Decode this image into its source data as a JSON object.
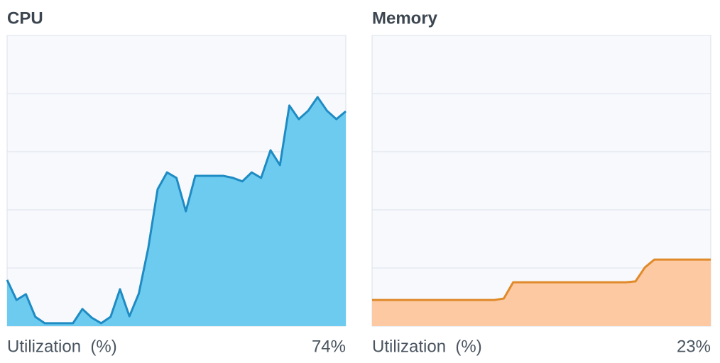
{
  "chart_data": [
    {
      "type": "area",
      "title": "CPU",
      "footer_label": "Utilization  (%)",
      "current_value": 74,
      "current_value_label": "74%",
      "line_color": "#1e8bc3",
      "fill_color": "#6ecbf0",
      "values": [
        15.9,
        9.0,
        11.0,
        3.2,
        1.0,
        1.0,
        1.0,
        1.0,
        5.9,
        2.9,
        1.0,
        3.2,
        12.7,
        3.4,
        11.2,
        26.8,
        47.1,
        52.9,
        51.0,
        39.5,
        51.7,
        51.7,
        51.7,
        51.7,
        51.0,
        49.8,
        52.9,
        51.0,
        60.5,
        55.4,
        75.9,
        71.2,
        74.1,
        78.8,
        74.1,
        71.2,
        73.9
      ],
      "ylim": [
        0,
        100
      ],
      "yticks": [
        20,
        40,
        60,
        80
      ],
      "grid": true
    },
    {
      "type": "area",
      "title": "Memory",
      "footer_label": "Utilization  (%)",
      "current_value": 23,
      "current_value_label": "23%",
      "line_color": "#e08a2a",
      "fill_color": "#fcc9a3",
      "values": [
        9.0,
        9.0,
        9.0,
        9.0,
        9.0,
        9.0,
        9.0,
        9.0,
        9.0,
        9.0,
        9.0,
        9.0,
        9.0,
        9.0,
        9.5,
        15.1,
        15.1,
        15.1,
        15.1,
        15.1,
        15.1,
        15.1,
        15.1,
        15.1,
        15.1,
        15.1,
        15.1,
        15.1,
        15.4,
        20.2,
        22.9,
        22.9,
        22.9,
        22.9,
        22.9,
        22.9,
        22.9
      ],
      "ylim": [
        0,
        100
      ],
      "yticks": [
        20,
        40,
        60,
        80
      ],
      "grid": true
    }
  ]
}
